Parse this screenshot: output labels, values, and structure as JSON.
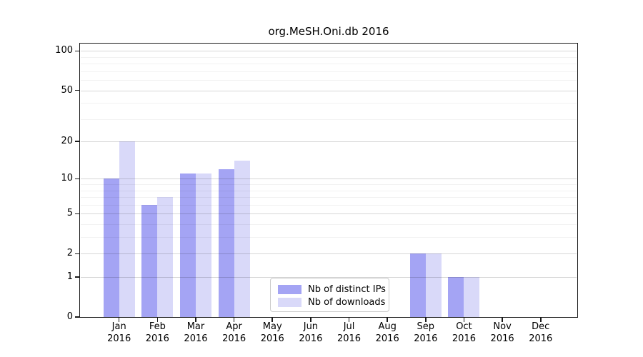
{
  "title": "org.MeSH.Oni.db 2016",
  "legend": {
    "items": [
      {
        "label": "Nb of distinct IPs",
        "color": "#a4a4f4"
      },
      {
        "label": "Nb of downloads",
        "color": "#d9d9f9"
      }
    ],
    "position": "lower center"
  },
  "chart_data": {
    "type": "bar",
    "title": "org.MeSH.Oni.db 2016",
    "scale": "log1p",
    "categories": [
      "Jan",
      "Feb",
      "Mar",
      "Apr",
      "May",
      "Jun",
      "Jul",
      "Aug",
      "Sep",
      "Oct",
      "Nov",
      "Dec"
    ],
    "year": "2016",
    "series": [
      {
        "name": "Nb of distinct IPs",
        "color": "#a4a4f4",
        "values": [
          10,
          6,
          11,
          12,
          0,
          0,
          0,
          0,
          2,
          1,
          0,
          0
        ]
      },
      {
        "name": "Nb of downloads",
        "color": "#d9d9f9",
        "values": [
          20,
          7,
          11,
          14,
          0,
          0,
          0,
          0,
          2,
          1,
          0,
          0
        ]
      }
    ],
    "xlabel": "",
    "ylabel": "",
    "ylim": [
      0,
      114
    ],
    "y_ticks": [
      0,
      1,
      2,
      5,
      10,
      20,
      50,
      100
    ],
    "y_minor_gridlines": [
      3,
      4,
      6,
      7,
      8,
      9,
      30,
      40,
      60,
      70,
      80,
      90
    ],
    "grid": "on",
    "legend_position": "lower center"
  }
}
